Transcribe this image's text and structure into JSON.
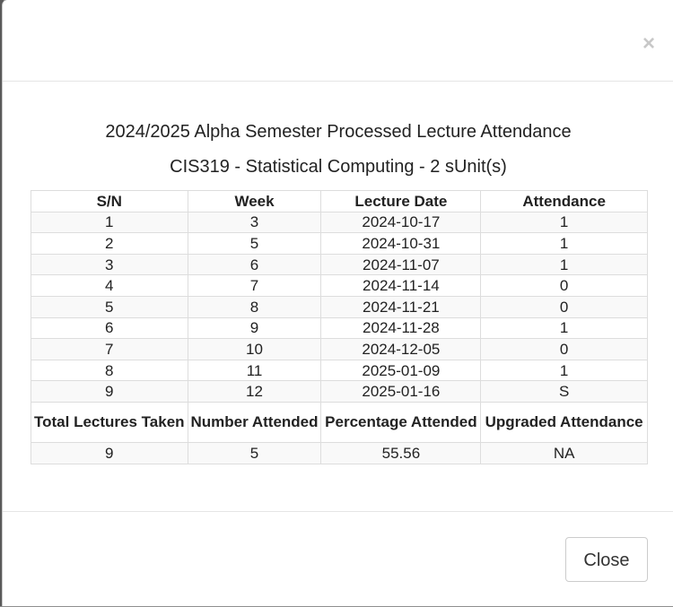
{
  "modal": {
    "close_icon": "×",
    "title": "2024/2025 Alpha Semester Processed Lecture Attendance",
    "subtitle": "CIS319 - Statistical Computing - 2 sUnit(s)",
    "close_button_label": "Close"
  },
  "table": {
    "headers": [
      "S/N",
      "Week",
      "Lecture Date",
      "Attendance"
    ],
    "rows": [
      [
        "1",
        "3",
        "2024-10-17",
        "1"
      ],
      [
        "2",
        "5",
        "2024-10-31",
        "1"
      ],
      [
        "3",
        "6",
        "2024-11-07",
        "1"
      ],
      [
        "4",
        "7",
        "2024-11-14",
        "0"
      ],
      [
        "5",
        "8",
        "2024-11-21",
        "0"
      ],
      [
        "6",
        "9",
        "2024-11-28",
        "1"
      ],
      [
        "7",
        "10",
        "2024-12-05",
        "0"
      ],
      [
        "8",
        "11",
        "2025-01-09",
        "1"
      ],
      [
        "9",
        "12",
        "2025-01-16",
        "S"
      ]
    ],
    "summary_headers": [
      "Total Lectures Taken",
      "Number Attended",
      "Percentage Attended",
      "Upgraded Attendance"
    ],
    "summary_values": [
      "9",
      "5",
      "55.56",
      "NA"
    ]
  },
  "colors": {
    "striped_row": "#f9f9f9",
    "border": "#dddddd",
    "close_icon": "#c8c8c8"
  }
}
